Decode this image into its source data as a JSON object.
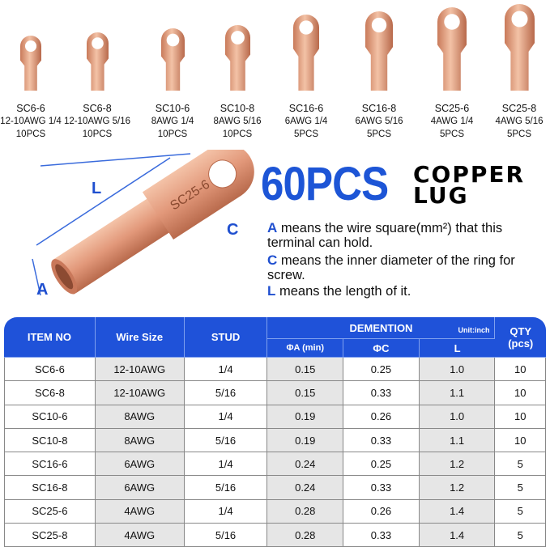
{
  "products": [
    {
      "model": "SC6-6",
      "spec": "12-10AWG 1/4",
      "qty": "10PCS"
    },
    {
      "model": "SC6-8",
      "spec": "12-10AWG 5/16",
      "qty": "10PCS"
    },
    {
      "model": "SC10-6",
      "spec": "8AWG 1/4",
      "qty": "10PCS"
    },
    {
      "model": "SC10-8",
      "spec": "8AWG 5/16",
      "qty": "10PCS"
    },
    {
      "model": "SC16-6",
      "spec": "6AWG 1/4",
      "qty": "5PCS"
    },
    {
      "model": "SC16-8",
      "spec": "6AWG 5/16",
      "qty": "5PCS"
    },
    {
      "model": "SC25-6",
      "spec": "4AWG 1/4",
      "qty": "5PCS"
    },
    {
      "model": "SC25-8",
      "spec": "4AWG 5/16",
      "qty": "5PCS"
    }
  ],
  "diagram": {
    "label_L": "L",
    "label_C": "C",
    "label_A": "A",
    "lug_marking": "SC25-6"
  },
  "headline": {
    "count": "60PCS",
    "line1": "COPPER",
    "line2": "LUG"
  },
  "legend": [
    {
      "key": "A",
      "text": "means the wire square(mm²) that this terminal can hold."
    },
    {
      "key": "C",
      "text": "means the inner diameter of the ring for screw."
    },
    {
      "key": "L",
      "text": "means the length of it."
    }
  ],
  "table": {
    "headers": {
      "item": "ITEM NO",
      "wire": "Wire Size",
      "stud": "STUD",
      "dimension": "DEMENTION",
      "unit": "Unit:inch",
      "qty": "QTY (pcs)",
      "a": "ΦA (min)",
      "c": "ΦC",
      "l": "L"
    },
    "rows": [
      [
        "SC6-6",
        "12-10AWG",
        "1/4",
        "0.15",
        "0.25",
        "1.0",
        "10"
      ],
      [
        "SC6-8",
        "12-10AWG",
        "5/16",
        "0.15",
        "0.33",
        "1.1",
        "10"
      ],
      [
        "SC10-6",
        "8AWG",
        "1/4",
        "0.19",
        "0.26",
        "1.0",
        "10"
      ],
      [
        "SC10-8",
        "8AWG",
        "5/16",
        "0.19",
        "0.33",
        "1.1",
        "10"
      ],
      [
        "SC16-6",
        "6AWG",
        "1/4",
        "0.24",
        "0.25",
        "1.2",
        "5"
      ],
      [
        "SC16-8",
        "6AWG",
        "5/16",
        "0.24",
        "0.33",
        "1.2",
        "5"
      ],
      [
        "SC25-6",
        "4AWG",
        "1/4",
        "0.28",
        "0.26",
        "1.4",
        "5"
      ],
      [
        "SC25-8",
        "4AWG",
        "5/16",
        "0.28",
        "0.33",
        "1.4",
        "5"
      ]
    ]
  },
  "colors": {
    "accent": "#1f52d9",
    "copper": "#e0997a"
  }
}
